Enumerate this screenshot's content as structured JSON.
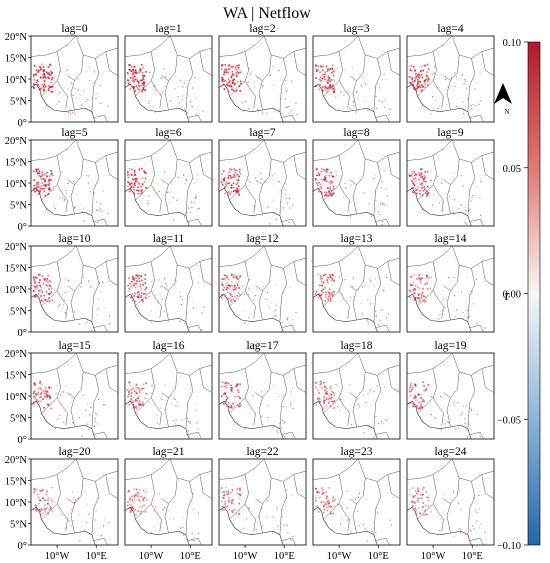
{
  "title": "WA | Netflow",
  "panels": [
    {
      "label": "lag=0",
      "intensity": 1.0
    },
    {
      "label": "lag=1",
      "intensity": 0.98
    },
    {
      "label": "lag=2",
      "intensity": 0.97
    },
    {
      "label": "lag=3",
      "intensity": 0.95
    },
    {
      "label": "lag=4",
      "intensity": 0.93
    },
    {
      "label": "lag=5",
      "intensity": 0.92
    },
    {
      "label": "lag=6",
      "intensity": 0.9
    },
    {
      "label": "lag=7",
      "intensity": 0.88
    },
    {
      "label": "lag=8",
      "intensity": 0.87
    },
    {
      "label": "lag=9",
      "intensity": 0.85
    },
    {
      "label": "lag=10",
      "intensity": 0.84
    },
    {
      "label": "lag=11",
      "intensity": 0.82
    },
    {
      "label": "lag=12",
      "intensity": 0.8
    },
    {
      "label": "lag=13",
      "intensity": 0.79
    },
    {
      "label": "lag=14",
      "intensity": 0.77
    },
    {
      "label": "lag=15",
      "intensity": 0.76
    },
    {
      "label": "lag=16",
      "intensity": 0.74
    },
    {
      "label": "lag=17",
      "intensity": 0.73
    },
    {
      "label": "lag=18",
      "intensity": 0.71
    },
    {
      "label": "lag=19",
      "intensity": 0.7
    },
    {
      "label": "lag=20",
      "intensity": 0.69
    },
    {
      "label": "lag=21",
      "intensity": 0.67
    },
    {
      "label": "lag=22",
      "intensity": 0.66
    },
    {
      "label": "lag=23",
      "intensity": 0.65
    },
    {
      "label": "lag=24",
      "intensity": 0.64
    }
  ],
  "y_ticks": [
    "20°N",
    "15°N",
    "10°N",
    "5°N",
    "0°"
  ],
  "x_ticks": [
    "10°W",
    "10°E"
  ],
  "colorbar": {
    "label": "r",
    "min": -0.1,
    "max": 0.1,
    "ticks": [
      "0.10",
      "0.05",
      "0.00",
      "−0.05",
      "−0.10"
    ],
    "colors": {
      "max": "#b2182b",
      "mid": "#f7f7f7",
      "min": "#2166ac"
    }
  },
  "north_arrow": {
    "label": "N",
    "icon": "north-arrow-icon"
  },
  "colors": {
    "positive": "#cc2030",
    "negative": "#3a6fb8",
    "border": "#333333",
    "land": "#ffffff"
  }
}
